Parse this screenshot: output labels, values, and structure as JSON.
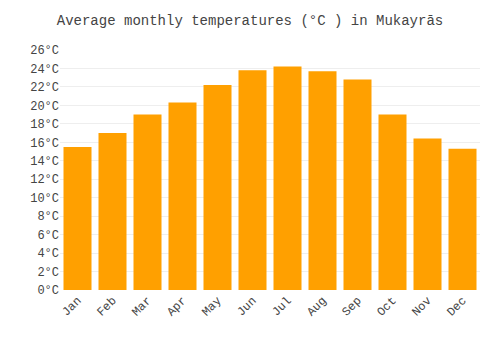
{
  "chart_data": {
    "type": "bar",
    "title": "Average monthly temperatures (°C ) in Mukayrās",
    "categories": [
      "Jan",
      "Feb",
      "Mar",
      "Apr",
      "May",
      "Jun",
      "Jul",
      "Aug",
      "Sep",
      "Oct",
      "Nov",
      "Dec"
    ],
    "values": [
      15.5,
      17.0,
      19.0,
      20.3,
      22.2,
      23.8,
      24.2,
      23.7,
      22.8,
      19.0,
      16.4,
      15.3
    ],
    "color": "#FFA000",
    "ylim": [
      0,
      26
    ],
    "yticks": [
      {
        "value": 0,
        "label": "0°C"
      },
      {
        "value": 2,
        "label": "2°C"
      },
      {
        "value": 4,
        "label": "4°C"
      },
      {
        "value": 6,
        "label": "6°C"
      },
      {
        "value": 8,
        "label": "8°C"
      },
      {
        "value": 10,
        "label": "10°C"
      },
      {
        "value": 12,
        "label": "12°C"
      },
      {
        "value": 14,
        "label": "14°C"
      },
      {
        "value": 16,
        "label": "16°C"
      },
      {
        "value": 18,
        "label": "18°C"
      },
      {
        "value": 20,
        "label": "20°C"
      },
      {
        "value": 22,
        "label": "22°C"
      },
      {
        "value": 24,
        "label": "24°C"
      },
      {
        "value": 26,
        "label": "26°C"
      }
    ],
    "grid": true
  }
}
